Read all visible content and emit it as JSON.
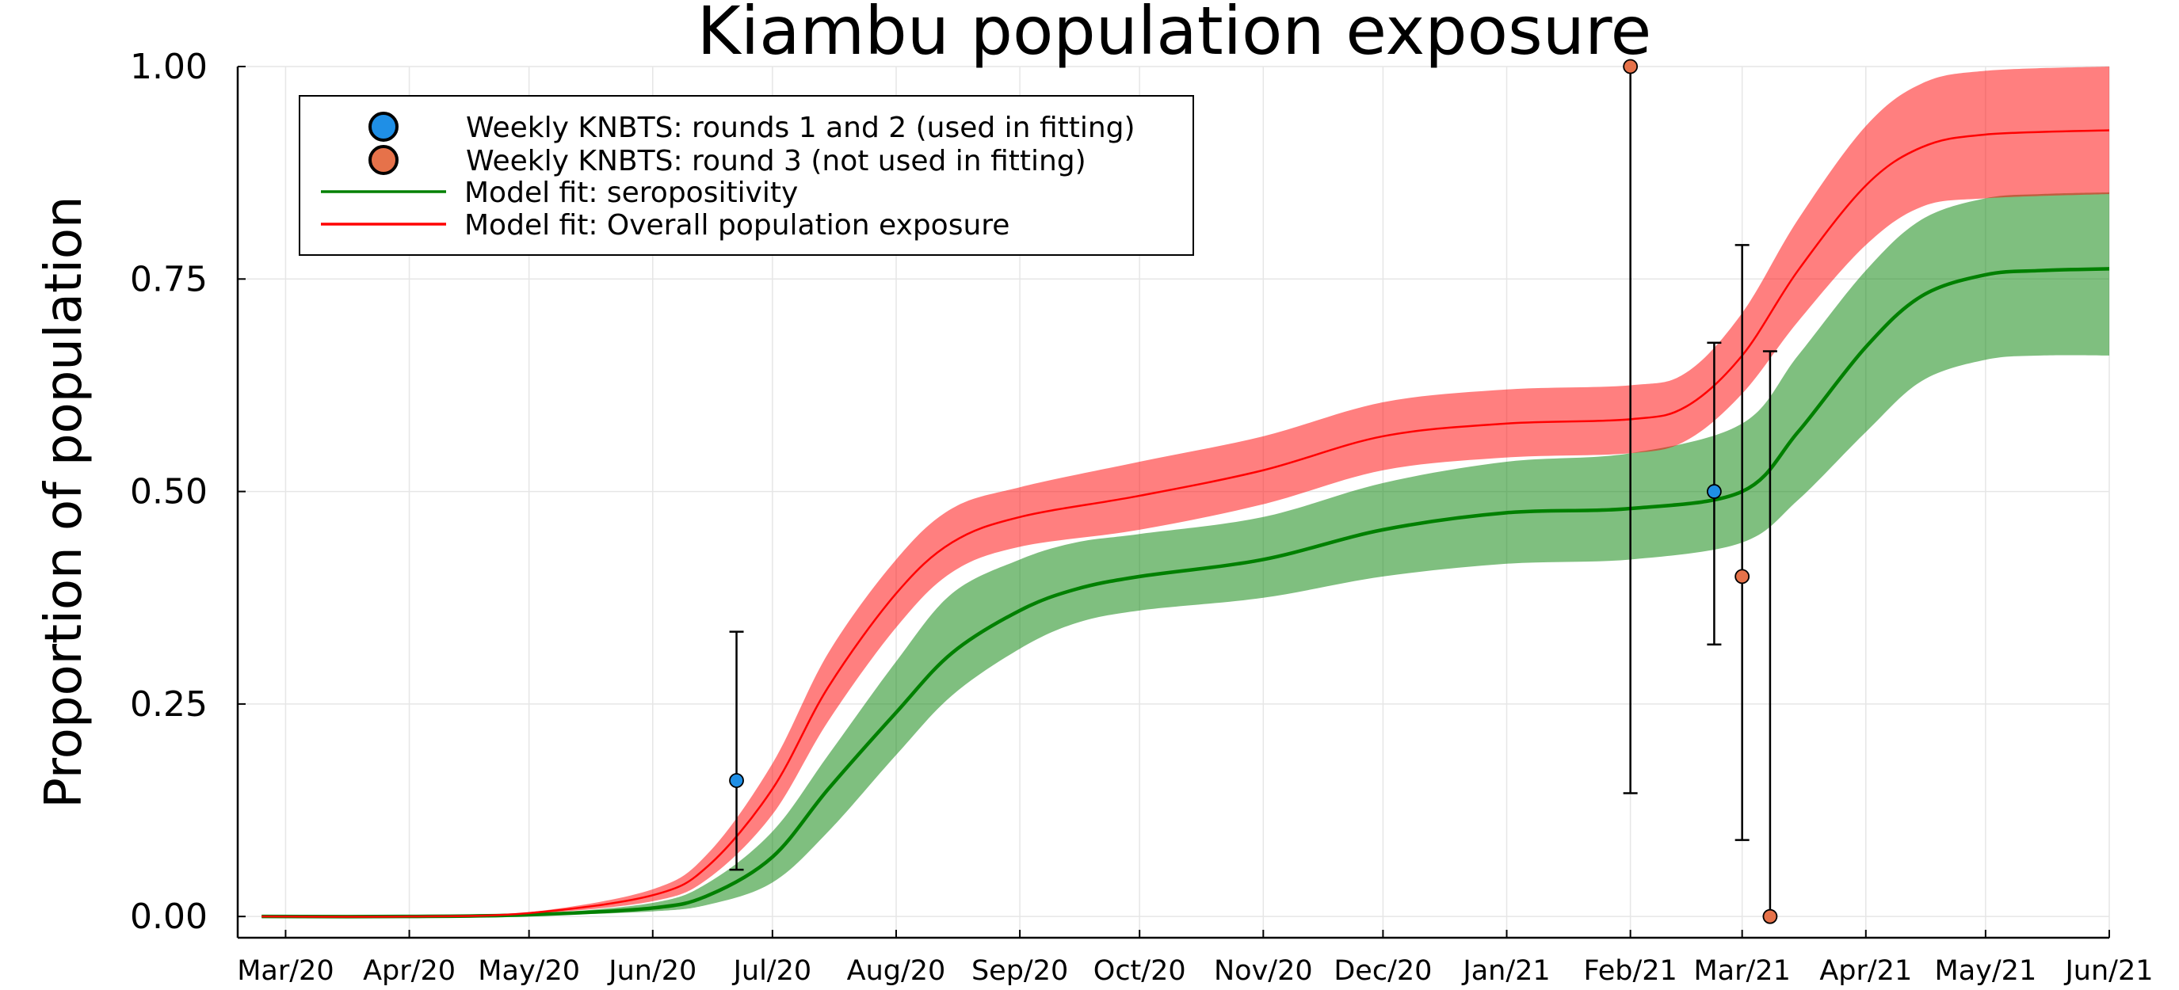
{
  "chart_data": {
    "type": "line",
    "title": "Kiambu population exposure",
    "xlabel": "",
    "ylabel": "Proportion of population",
    "xlim": [
      "2020-02-18",
      "2021-06-01"
    ],
    "ylim": [
      -0.025,
      1.0
    ],
    "x_ticks": [
      {
        "date": "2020-03-01",
        "label": "Mar/20"
      },
      {
        "date": "2020-04-01",
        "label": "Apr/20"
      },
      {
        "date": "2020-05-01",
        "label": "May/20"
      },
      {
        "date": "2020-06-01",
        "label": "Jun/20"
      },
      {
        "date": "2020-07-01",
        "label": "Jul/20"
      },
      {
        "date": "2020-08-01",
        "label": "Aug/20"
      },
      {
        "date": "2020-09-01",
        "label": "Sep/20"
      },
      {
        "date": "2020-10-01",
        "label": "Oct/20"
      },
      {
        "date": "2020-11-01",
        "label": "Nov/20"
      },
      {
        "date": "2020-12-01",
        "label": "Dec/20"
      },
      {
        "date": "2021-01-01",
        "label": "Jan/21"
      },
      {
        "date": "2021-02-01",
        "label": "Feb/21"
      },
      {
        "date": "2021-03-01",
        "label": "Mar/21"
      },
      {
        "date": "2021-04-01",
        "label": "Apr/21"
      },
      {
        "date": "2021-05-01",
        "label": "May/21"
      },
      {
        "date": "2021-06-01",
        "label": "Jun/21"
      }
    ],
    "y_ticks": [
      {
        "value": 0.0,
        "label": "0.00"
      },
      {
        "value": 0.25,
        "label": "0.25"
      },
      {
        "value": 0.5,
        "label": "0.50"
      },
      {
        "value": 0.75,
        "label": "0.75"
      },
      {
        "value": 1.0,
        "label": "1.00"
      }
    ],
    "grid": true,
    "legend_position": "top-left",
    "series": [
      {
        "name": "Model fit: seropositivity",
        "kind": "line_with_band",
        "color": "#008000",
        "band_color": "#008000",
        "points": [
          {
            "x": "2020-02-24",
            "y": 0.0,
            "lo": 0.0,
            "hi": 0.0
          },
          {
            "x": "2020-04-01",
            "y": 0.0,
            "lo": 0.0,
            "hi": 0.0
          },
          {
            "x": "2020-05-01",
            "y": 0.002,
            "lo": 0.001,
            "hi": 0.003
          },
          {
            "x": "2020-06-01",
            "y": 0.01,
            "lo": 0.006,
            "hi": 0.016
          },
          {
            "x": "2020-06-15",
            "y": 0.025,
            "lo": 0.014,
            "hi": 0.04
          },
          {
            "x": "2020-07-01",
            "y": 0.07,
            "lo": 0.04,
            "hi": 0.1
          },
          {
            "x": "2020-07-15",
            "y": 0.15,
            "lo": 0.1,
            "hi": 0.19
          },
          {
            "x": "2020-08-01",
            "y": 0.24,
            "lo": 0.19,
            "hi": 0.3
          },
          {
            "x": "2020-08-15",
            "y": 0.31,
            "lo": 0.26,
            "hi": 0.38
          },
          {
            "x": "2020-09-01",
            "y": 0.36,
            "lo": 0.315,
            "hi": 0.42
          },
          {
            "x": "2020-09-15",
            "y": 0.385,
            "lo": 0.345,
            "hi": 0.44
          },
          {
            "x": "2020-10-01",
            "y": 0.4,
            "lo": 0.36,
            "hi": 0.45
          },
          {
            "x": "2020-11-01",
            "y": 0.42,
            "lo": 0.375,
            "hi": 0.47
          },
          {
            "x": "2020-12-01",
            "y": 0.455,
            "lo": 0.4,
            "hi": 0.51
          },
          {
            "x": "2021-01-01",
            "y": 0.475,
            "lo": 0.415,
            "hi": 0.535
          },
          {
            "x": "2021-02-01",
            "y": 0.48,
            "lo": 0.42,
            "hi": 0.545
          },
          {
            "x": "2021-03-01",
            "y": 0.5,
            "lo": 0.44,
            "hi": 0.58
          },
          {
            "x": "2021-03-15",
            "y": 0.57,
            "lo": 0.49,
            "hi": 0.66
          },
          {
            "x": "2021-04-01",
            "y": 0.67,
            "lo": 0.57,
            "hi": 0.76
          },
          {
            "x": "2021-04-15",
            "y": 0.73,
            "lo": 0.63,
            "hi": 0.82
          },
          {
            "x": "2021-05-01",
            "y": 0.755,
            "lo": 0.655,
            "hi": 0.845
          },
          {
            "x": "2021-05-15",
            "y": 0.76,
            "lo": 0.66,
            "hi": 0.85
          },
          {
            "x": "2021-06-01",
            "y": 0.762,
            "lo": 0.66,
            "hi": 0.852
          }
        ]
      },
      {
        "name": "Model fit: Overall population exposure",
        "kind": "line_with_band",
        "color": "#ff0000",
        "band_color": "#ff0000",
        "points": [
          {
            "x": "2020-02-24",
            "y": 0.0,
            "lo": 0.0,
            "hi": 0.0
          },
          {
            "x": "2020-04-01",
            "y": 0.0,
            "lo": 0.0,
            "hi": 0.0
          },
          {
            "x": "2020-05-01",
            "y": 0.004,
            "lo": 0.003,
            "hi": 0.005
          },
          {
            "x": "2020-06-01",
            "y": 0.025,
            "lo": 0.018,
            "hi": 0.032
          },
          {
            "x": "2020-06-15",
            "y": 0.06,
            "lo": 0.045,
            "hi": 0.075
          },
          {
            "x": "2020-07-01",
            "y": 0.15,
            "lo": 0.12,
            "hi": 0.18
          },
          {
            "x": "2020-07-15",
            "y": 0.27,
            "lo": 0.23,
            "hi": 0.31
          },
          {
            "x": "2020-08-01",
            "y": 0.38,
            "lo": 0.34,
            "hi": 0.42
          },
          {
            "x": "2020-08-15",
            "y": 0.44,
            "lo": 0.405,
            "hi": 0.48
          },
          {
            "x": "2020-09-01",
            "y": 0.47,
            "lo": 0.435,
            "hi": 0.505
          },
          {
            "x": "2020-10-01",
            "y": 0.495,
            "lo": 0.455,
            "hi": 0.535
          },
          {
            "x": "2020-11-01",
            "y": 0.525,
            "lo": 0.485,
            "hi": 0.565
          },
          {
            "x": "2020-12-01",
            "y": 0.565,
            "lo": 0.525,
            "hi": 0.605
          },
          {
            "x": "2021-01-01",
            "y": 0.58,
            "lo": 0.54,
            "hi": 0.62
          },
          {
            "x": "2021-02-01",
            "y": 0.585,
            "lo": 0.545,
            "hi": 0.625
          },
          {
            "x": "2021-02-15",
            "y": 0.6,
            "lo": 0.56,
            "hi": 0.64
          },
          {
            "x": "2021-03-01",
            "y": 0.66,
            "lo": 0.615,
            "hi": 0.71
          },
          {
            "x": "2021-03-15",
            "y": 0.76,
            "lo": 0.7,
            "hi": 0.82
          },
          {
            "x": "2021-04-01",
            "y": 0.86,
            "lo": 0.79,
            "hi": 0.93
          },
          {
            "x": "2021-04-15",
            "y": 0.905,
            "lo": 0.835,
            "hi": 0.98
          },
          {
            "x": "2021-05-01",
            "y": 0.92,
            "lo": 0.845,
            "hi": 0.995
          },
          {
            "x": "2021-06-01",
            "y": 0.925,
            "lo": 0.85,
            "hi": 1.0
          }
        ]
      },
      {
        "name": "Weekly KNBTS: rounds 1 and 2 (used in fitting)",
        "kind": "points_with_errorbars",
        "color": "#1f8fe6",
        "points": [
          {
            "x": "2020-06-22",
            "y": 0.16,
            "lo": 0.055,
            "hi": 0.335
          },
          {
            "x": "2021-02-22",
            "y": 0.5,
            "lo": 0.32,
            "hi": 0.675
          }
        ]
      },
      {
        "name": "Weekly KNBTS: round 3 (not used in fitting)",
        "kind": "points_with_errorbars",
        "color": "#e6724a",
        "points": [
          {
            "x": "2021-02-01",
            "y": 1.0,
            "lo": 0.145,
            "hi": 1.0
          },
          {
            "x": "2021-03-01",
            "y": 0.4,
            "lo": 0.09,
            "hi": 0.79
          },
          {
            "x": "2021-03-08",
            "y": 0.0,
            "lo": 0.0,
            "hi": 0.665
          }
        ]
      }
    ],
    "legend": [
      {
        "label": "Weekly KNBTS: rounds 1 and 2 (used in fitting)",
        "marker": "circle",
        "color": "#1f8fe6"
      },
      {
        "label": "Weekly KNBTS: round 3 (not used in fitting)",
        "marker": "circle",
        "color": "#e6724a"
      },
      {
        "label": "Model fit: seropositivity",
        "marker": "line",
        "color": "#008000"
      },
      {
        "label": "Model fit: Overall population exposure",
        "marker": "line",
        "color": "#ff0000"
      }
    ]
  }
}
